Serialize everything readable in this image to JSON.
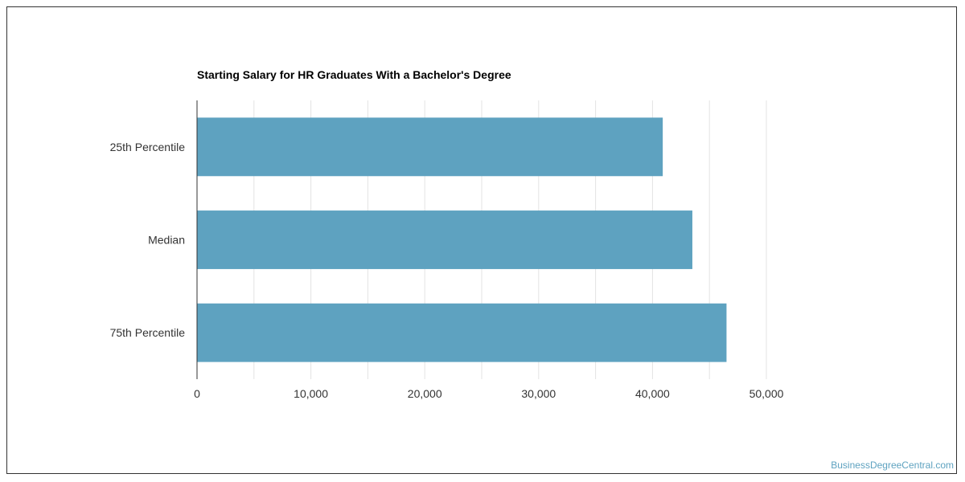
{
  "chart_data": {
    "type": "bar",
    "orientation": "horizontal",
    "title": "Starting Salary for HR Graduates With a Bachelor's Degree",
    "xlabel": "",
    "ylabel": "",
    "categories": [
      "25th Percentile",
      "Median",
      "75th Percentile"
    ],
    "values": [
      40900,
      43500,
      46500
    ],
    "xlim": [
      0,
      50000
    ],
    "xticks": [
      0,
      10000,
      20000,
      30000,
      40000,
      50000
    ],
    "xtick_labels": [
      "0",
      "10,000",
      "20,000",
      "30,000",
      "40,000",
      "50,000"
    ],
    "grid": true,
    "bar_color": "#5ea2c0"
  },
  "watermark": "BusinessDegreeCentral.com"
}
